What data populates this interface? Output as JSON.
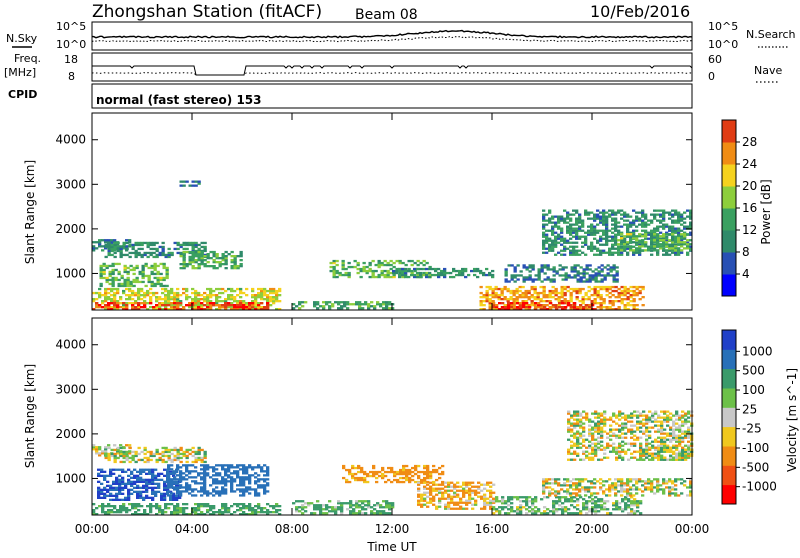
{
  "header": {
    "title": "Zhongshan Station (fitACF)",
    "beam": "Beam 08",
    "date": "10/Feb/2016"
  },
  "top_panels": {
    "nsky_label": "N.Sky",
    "nsky_ticks": [
      "10^5",
      "10^0"
    ],
    "nsearch_label": "N.Search",
    "nsearch_ticks": [
      "10^5",
      "10^0"
    ],
    "freq_label": "Freq.",
    "freq_unit": "[MHz]",
    "freq_ticks": [
      "18",
      "8"
    ],
    "nave_label": "Nave",
    "nave_ticks": [
      "60",
      "0"
    ],
    "cpid_label": "CPID",
    "cpid_text": "normal (fast stereo) 153"
  },
  "colors": {
    "power_scale": [
      "#0000ff",
      "#2850b4",
      "#2f8a6a",
      "#3aa060",
      "#8dce3c",
      "#f5d21e",
      "#f08c14",
      "#e03c14",
      "#ff0000"
    ],
    "velocity_scale": [
      "#2040c8",
      "#2870b8",
      "#3a9a6a",
      "#6cc048",
      "#c8c8c8",
      "#f0c81e",
      "#f08c14",
      "#f05014",
      "#ff0000"
    ]
  },
  "chart_data": [
    {
      "type": "heatmap",
      "name": "power",
      "ylabel": "Slant Range [km]",
      "yticks": [
        "4000",
        "3000",
        "2000",
        "1000"
      ],
      "xlim": [
        0,
        24
      ],
      "ylim": [
        180,
        4600
      ],
      "colorbar": {
        "label": "Power [dB]",
        "ticks": [
          "28",
          "24",
          "20",
          "16",
          "12",
          "8",
          "4"
        ],
        "range": [
          0,
          32
        ]
      },
      "echo_regions": [
        {
          "t": [
            0.0,
            1.5
          ],
          "r": [
            1500,
            1750
          ],
          "v": 8
        },
        {
          "t": [
            0.5,
            4.5
          ],
          "r": [
            1350,
            1700
          ],
          "v": 10
        },
        {
          "t": [
            3.5,
            6.0
          ],
          "r": [
            1100,
            1500
          ],
          "v": 12
        },
        {
          "t": [
            0.3,
            3.0
          ],
          "r": [
            700,
            1200
          ],
          "v": 14
        },
        {
          "t": [
            0.0,
            7.5
          ],
          "r": [
            180,
            650
          ],
          "v": 18
        },
        {
          "t": [
            0.0,
            7.0
          ],
          "r": [
            180,
            320
          ],
          "v": 27
        },
        {
          "t": [
            3.5,
            4.3
          ],
          "r": [
            2950,
            3050
          ],
          "v": 8
        },
        {
          "t": [
            8.0,
            12.0
          ],
          "r": [
            200,
            350
          ],
          "v": 12
        },
        {
          "t": [
            9.5,
            13.5
          ],
          "r": [
            900,
            1300
          ],
          "v": 14
        },
        {
          "t": [
            12.0,
            16.0
          ],
          "r": [
            900,
            1100
          ],
          "v": 10
        },
        {
          "t": [
            15.5,
            22.0
          ],
          "r": [
            180,
            700
          ],
          "v": 22
        },
        {
          "t": [
            16.0,
            20.0
          ],
          "r": [
            180,
            350
          ],
          "v": 28
        },
        {
          "t": [
            16.5,
            21.0
          ],
          "r": [
            800,
            1200
          ],
          "v": 8
        },
        {
          "t": [
            18.0,
            24.0
          ],
          "r": [
            1400,
            2400
          ],
          "v": 10
        },
        {
          "t": [
            21.0,
            24.0
          ],
          "r": [
            1500,
            1900
          ],
          "v": 14
        }
      ]
    },
    {
      "type": "heatmap",
      "name": "velocity",
      "xlabel": "Time UT",
      "ylabel": "Slant Range [km]",
      "xticks": [
        "00:00",
        "04:00",
        "08:00",
        "12:00",
        "16:00",
        "20:00",
        "00:00"
      ],
      "yticks": [
        "4000",
        "3000",
        "2000",
        "1000"
      ],
      "xlim": [
        0,
        24
      ],
      "ylim": [
        180,
        4600
      ],
      "colorbar": {
        "label": "Velocity [m s^-1]",
        "ticks": [
          "1000",
          "500",
          "100",
          "25",
          "-25",
          "-100",
          "-500",
          "-1000"
        ]
      },
      "echo_regions": [
        {
          "t": [
            0.0,
            1.5
          ],
          "r": [
            1500,
            1750
          ],
          "v": 0
        },
        {
          "t": [
            0.5,
            4.5
          ],
          "r": [
            1350,
            1700
          ],
          "v": 0
        },
        {
          "t": [
            0.2,
            3.5
          ],
          "r": [
            500,
            1200
          ],
          "v": 1000
        },
        {
          "t": [
            0.0,
            7.5
          ],
          "r": [
            180,
            450
          ],
          "v": 200
        },
        {
          "t": [
            3.0,
            7.0
          ],
          "r": [
            600,
            1300
          ],
          "v": 800
        },
        {
          "t": [
            8.0,
            12.0
          ],
          "r": [
            200,
            500
          ],
          "v": 150
        },
        {
          "t": [
            10.0,
            14.0
          ],
          "r": [
            900,
            1300
          ],
          "v": -200
        },
        {
          "t": [
            13.0,
            16.0
          ],
          "r": [
            300,
            900
          ],
          "v": -100
        },
        {
          "t": [
            16.0,
            22.0
          ],
          "r": [
            200,
            600
          ],
          "v": 100
        },
        {
          "t": [
            18.0,
            24.0
          ],
          "r": [
            600,
            1000
          ],
          "v": 0
        },
        {
          "t": [
            19.0,
            24.0
          ],
          "r": [
            1400,
            2500
          ],
          "v": 0
        },
        {
          "t": [
            22.0,
            24.0
          ],
          "r": [
            1400,
            1700
          ],
          "v": 0
        }
      ]
    }
  ]
}
